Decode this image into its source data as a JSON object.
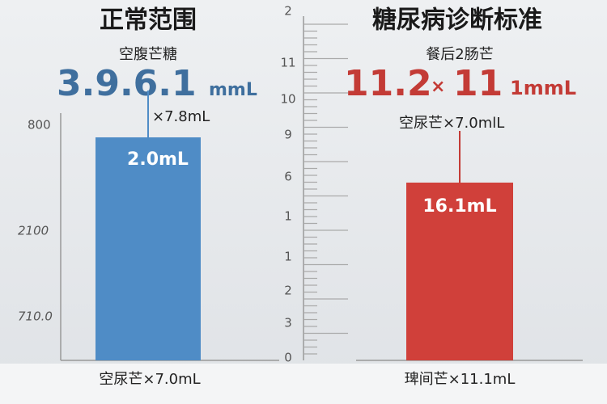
{
  "left": {
    "title": "正常范围",
    "subtitle": "空腹芒糖",
    "big_value": "3.9.6.1",
    "big_unit": "mmL",
    "note": "×7.8mL",
    "axis_labels": [
      "800",
      "2100",
      "710.0"
    ],
    "bar_label": "2.0mL",
    "footer": "空尿芒×7.0mL"
  },
  "ruler": {
    "labels": [
      "2",
      "11",
      "10",
      "9",
      "6",
      "1",
      "1",
      "2",
      "3",
      "0"
    ]
  },
  "right": {
    "title": "糖尿病诊断标准",
    "subtitle": "餐后2肠芒",
    "big_value": "11.2",
    "big_sep": "×",
    "big_value2": "11",
    "big_unit": "1mmL",
    "note": "空尿芒×7.0mlL",
    "bar_label": "16.1mL",
    "footer": "琕间芒×11.1mL"
  }
}
